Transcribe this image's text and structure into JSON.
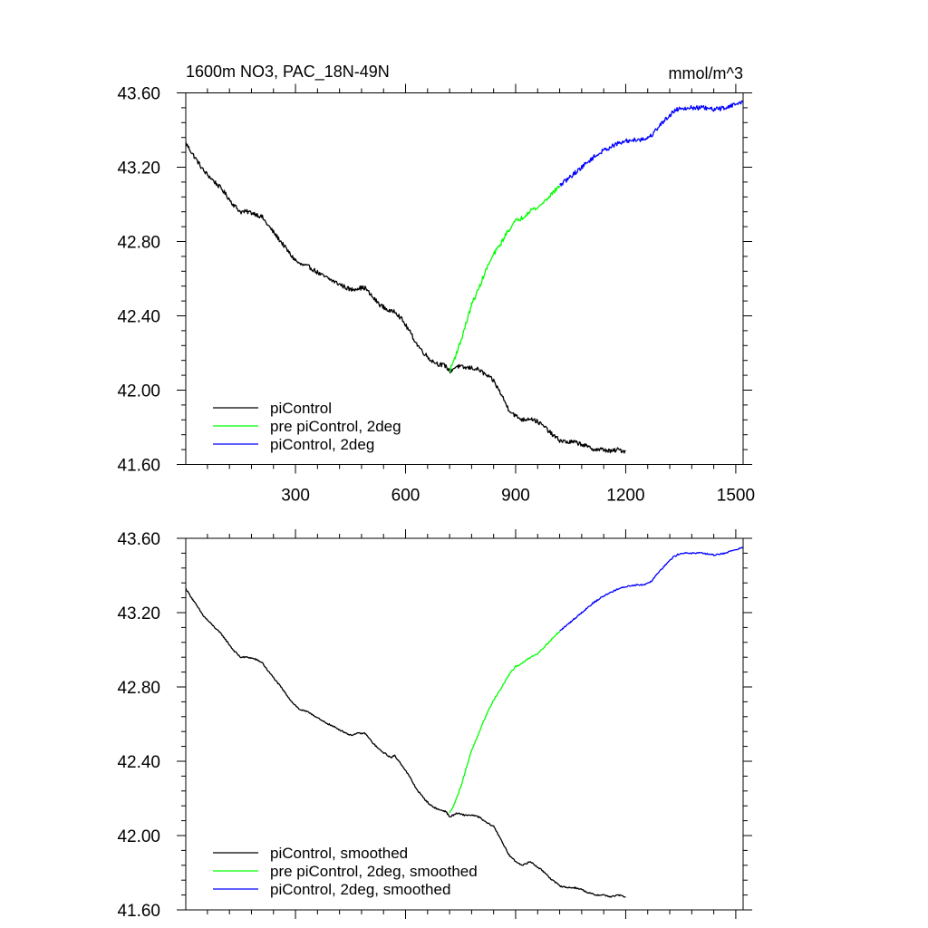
{
  "colors": {
    "piControl": "#000000",
    "pre_2deg": "#00ff00",
    "pi_2deg": "#0000ff"
  },
  "chart_data": [
    {
      "type": "line",
      "title_left": "1600m NO3, PAC_18N-49N",
      "title_right": "mmol/m^3",
      "xlim": [
        1,
        1520
      ],
      "ylim": [
        41.6,
        43.6
      ],
      "x_ticks": [
        300,
        600,
        900,
        1200,
        1500
      ],
      "x_tick_labels": [
        "300",
        "600",
        "900",
        "1200",
        "1500"
      ],
      "y_ticks": [
        41.6,
        42.0,
        42.4,
        42.8,
        43.2,
        43.6
      ],
      "y_tick_labels": [
        "41.60",
        "42.00",
        "42.40",
        "42.80",
        "43.20",
        "43.60"
      ],
      "noise": 0.012,
      "series": [
        {
          "name": "piControl",
          "color_key": "piControl",
          "x": [
            1,
            20,
            50,
            80,
            100,
            130,
            150,
            170,
            190,
            210,
            220,
            260,
            290,
            310,
            340,
            370,
            390,
            420,
            450,
            470,
            490,
            510,
            530,
            560,
            570,
            590,
            610,
            630,
            650,
            670,
            690,
            710,
            720,
            740,
            760,
            780,
            800,
            820,
            840,
            860,
            880,
            900,
            920,
            940,
            960,
            980,
            1000,
            1020,
            1040,
            1060,
            1080,
            1100,
            1120,
            1140,
            1160,
            1180,
            1200
          ],
          "values": [
            43.33,
            43.27,
            43.18,
            43.12,
            43.08,
            43.0,
            42.96,
            42.96,
            42.95,
            42.93,
            42.9,
            42.8,
            42.72,
            42.68,
            42.66,
            42.62,
            42.6,
            42.57,
            42.54,
            42.55,
            42.55,
            42.5,
            42.46,
            42.42,
            42.43,
            42.38,
            42.32,
            42.25,
            42.2,
            42.16,
            42.14,
            42.13,
            42.1,
            42.13,
            42.12,
            42.12,
            42.11,
            42.08,
            42.05,
            41.98,
            41.9,
            41.86,
            41.84,
            41.85,
            41.83,
            41.8,
            41.76,
            41.73,
            41.72,
            41.72,
            41.71,
            41.69,
            41.68,
            41.68,
            41.67,
            41.68,
            41.67
          ]
        },
        {
          "name": "pre piControl, 2deg",
          "color_key": "pre_2deg",
          "x": [
            720,
            735,
            750,
            765,
            780,
            800,
            820,
            840,
            860,
            880,
            900,
            920,
            940,
            960,
            980,
            1000,
            1020
          ],
          "values": [
            42.1,
            42.18,
            42.26,
            42.36,
            42.46,
            42.55,
            42.65,
            42.73,
            42.79,
            42.86,
            42.91,
            42.93,
            42.97,
            42.98,
            43.02,
            43.06,
            43.1
          ]
        },
        {
          "name": "piControl, 2deg",
          "color_key": "pi_2deg",
          "x": [
            1020,
            1050,
            1080,
            1110,
            1140,
            1170,
            1200,
            1230,
            1250,
            1270,
            1290,
            1310,
            1330,
            1350,
            1380,
            1410,
            1440,
            1470,
            1500,
            1520
          ],
          "values": [
            43.1,
            43.15,
            43.2,
            43.25,
            43.29,
            43.32,
            43.34,
            43.35,
            43.35,
            43.37,
            43.42,
            43.46,
            43.5,
            43.52,
            43.52,
            43.52,
            43.51,
            43.52,
            43.54,
            43.55
          ]
        }
      ],
      "legend": [
        "piControl",
        "pre piControl, 2deg",
        "piControl, 2deg"
      ]
    },
    {
      "type": "line",
      "xlim": [
        1,
        1520
      ],
      "ylim": [
        41.6,
        43.6
      ],
      "x_ticks": [
        300,
        600,
        900,
        1200,
        1500
      ],
      "y_ticks": [
        41.6,
        42.0,
        42.4,
        42.8,
        43.2,
        43.6
      ],
      "y_tick_labels": [
        "41.60",
        "42.00",
        "42.40",
        "42.80",
        "43.20",
        "43.60"
      ],
      "noise": 0.004,
      "series": [
        {
          "name": "piControl, smoothed",
          "color_key": "piControl",
          "x": [
            1,
            20,
            50,
            80,
            100,
            130,
            150,
            170,
            190,
            210,
            220,
            260,
            290,
            310,
            340,
            370,
            390,
            420,
            450,
            470,
            490,
            510,
            530,
            560,
            570,
            590,
            610,
            630,
            650,
            670,
            690,
            710,
            720,
            740,
            760,
            780,
            800,
            820,
            840,
            860,
            880,
            900,
            920,
            940,
            960,
            980,
            1000,
            1020,
            1040,
            1060,
            1080,
            1100,
            1120,
            1140,
            1160,
            1180,
            1200
          ],
          "values": [
            43.33,
            43.27,
            43.18,
            43.12,
            43.08,
            43.0,
            42.96,
            42.96,
            42.95,
            42.93,
            42.9,
            42.8,
            42.72,
            42.68,
            42.66,
            42.62,
            42.6,
            42.57,
            42.54,
            42.55,
            42.55,
            42.5,
            42.46,
            42.42,
            42.43,
            42.38,
            42.32,
            42.25,
            42.2,
            42.16,
            42.14,
            42.13,
            42.1,
            42.12,
            42.11,
            42.11,
            42.1,
            42.07,
            42.05,
            41.98,
            41.9,
            41.86,
            41.84,
            41.86,
            41.83,
            41.8,
            41.76,
            41.73,
            41.72,
            41.72,
            41.71,
            41.69,
            41.68,
            41.68,
            41.67,
            41.68,
            41.67
          ]
        },
        {
          "name": "pre piControl, 2deg, smoothed",
          "color_key": "pre_2deg",
          "x": [
            720,
            735,
            750,
            765,
            780,
            800,
            820,
            840,
            860,
            880,
            900,
            920,
            940,
            960,
            980,
            1000,
            1020
          ],
          "values": [
            42.12,
            42.18,
            42.26,
            42.36,
            42.46,
            42.55,
            42.65,
            42.73,
            42.79,
            42.86,
            42.91,
            42.93,
            42.96,
            42.98,
            43.02,
            43.06,
            43.1
          ]
        },
        {
          "name": "piControl, 2deg, smoothed",
          "color_key": "pi_2deg",
          "x": [
            1020,
            1050,
            1080,
            1110,
            1140,
            1170,
            1200,
            1230,
            1250,
            1270,
            1290,
            1310,
            1330,
            1350,
            1380,
            1410,
            1440,
            1470,
            1500,
            1520
          ],
          "values": [
            43.1,
            43.15,
            43.2,
            43.25,
            43.29,
            43.32,
            43.34,
            43.35,
            43.35,
            43.37,
            43.42,
            43.46,
            43.5,
            43.52,
            43.52,
            43.52,
            43.51,
            43.52,
            43.54,
            43.55
          ]
        }
      ],
      "legend": [
        "piControl, smoothed",
        "pre piControl, 2deg, smoothed",
        "piControl, 2deg, smoothed"
      ]
    }
  ]
}
